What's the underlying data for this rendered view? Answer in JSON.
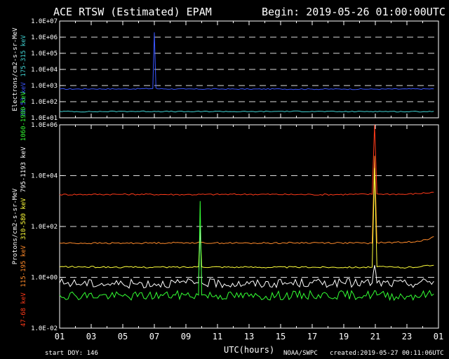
{
  "header": {
    "title": "ACE RTSW (Estimated) EPAM",
    "begin": "Begin: 2019-05-26 01:00:00UTC"
  },
  "footer": {
    "start_doy": "start DOY:  146",
    "xlabel": "UTC(hours)",
    "source": "NOAA/SWPC",
    "created": "created:2019-05-27 00:11:06UTC"
  },
  "colors": {
    "e_38_53": "#3a56ff",
    "e_175_315": "#3fd0d0",
    "p_47_68": "#ff3a1a",
    "p_115_195": "#ff8a2a",
    "p_310_580": "#ffff3a",
    "p_795_1193": "#ffffff",
    "p_1060_1900": "#33ff33"
  },
  "chart_data": [
    {
      "type": "line",
      "panel": "electrons",
      "ylabel": "Electrons/cm2-s-sr-MeV",
      "yscale": "log",
      "ylim": [
        10,
        10000000
      ],
      "xlim": [
        1,
        25
      ],
      "yticks": [
        "1.0E+01",
        "1.0E+02",
        "1.0E+03",
        "1.0E+04",
        "1.0E+05",
        "1.0E+06",
        "1.0E+07"
      ],
      "series": [
        {
          "name": "38-53 keV",
          "x": [
            1,
            3,
            5,
            6.9,
            7.0,
            7.1,
            7.2,
            9,
            11,
            13,
            15,
            17,
            19,
            21,
            23,
            24.7
          ],
          "values": [
            600,
            620,
            610,
            650,
            2000000,
            700,
            630,
            600,
            610,
            600,
            610,
            600,
            605,
            600,
            610,
            620
          ]
        },
        {
          "name": "175-315 keV",
          "x": [
            1,
            3,
            5,
            7,
            9,
            11,
            13,
            15,
            17,
            19,
            21,
            23,
            24.7
          ],
          "values": [
            25,
            24,
            25,
            25,
            24,
            25,
            24,
            25,
            25,
            24,
            25,
            24,
            25
          ]
        }
      ]
    },
    {
      "type": "line",
      "panel": "protons",
      "ylabel": "Protons/cm2-s-sr-MeV",
      "yscale": "log",
      "ylim": [
        0.01,
        1000000
      ],
      "xlim": [
        1,
        25
      ],
      "xticks": [
        "01",
        "03",
        "05",
        "07",
        "09",
        "11",
        "13",
        "15",
        "17",
        "19",
        "21",
        "23",
        "01"
      ],
      "yticks": [
        "1.0E-02",
        "1.0E+00",
        "1.0E+02",
        "1.0E+04",
        "1.0E+06"
      ],
      "series": [
        {
          "name": "47-68 keV",
          "x": [
            1,
            5,
            9,
            13,
            17,
            20.8,
            20.95,
            21.1,
            23,
            24.7
          ],
          "values": [
            1800,
            1850,
            1800,
            1850,
            1800,
            1850,
            1000000,
            1900,
            1850,
            2200
          ]
        },
        {
          "name": "115-195 keV",
          "x": [
            1,
            5,
            9,
            13,
            17,
            20.8,
            20.95,
            21.1,
            23,
            24.3,
            24.7
          ],
          "values": [
            22,
            22,
            23,
            22,
            23,
            22,
            60000,
            23,
            24,
            30,
            40
          ]
        },
        {
          "name": "310-580 keV",
          "x": [
            1,
            5,
            9,
            9.8,
            9.9,
            10.0,
            13,
            17,
            20.8,
            20.95,
            21.1,
            23,
            24.7
          ],
          "values": [
            2.6,
            2.5,
            2.5,
            2.6,
            100,
            2.6,
            2.5,
            2.5,
            2.5,
            20000,
            2.6,
            2.4,
            3.0
          ]
        },
        {
          "name": "795-1193 keV",
          "x": [
            1,
            5,
            9,
            9.8,
            9.9,
            10.0,
            13,
            17,
            20.8,
            20.95,
            21.1,
            23,
            24.7
          ],
          "values": [
            0.6,
            0.55,
            0.6,
            0.6,
            100,
            0.6,
            0.55,
            0.6,
            0.6,
            3,
            0.6,
            0.55,
            0.7
          ]
        },
        {
          "name": "1060-1900 keV",
          "x": [
            1,
            5,
            9,
            9.8,
            9.9,
            10.0,
            13,
            17,
            20.8,
            20.95,
            21.1,
            23,
            24.7
          ],
          "values": [
            0.2,
            0.18,
            0.2,
            0.2,
            1000,
            0.2,
            0.18,
            0.2,
            0.2,
            0.3,
            0.2,
            0.18,
            0.22
          ]
        }
      ]
    }
  ]
}
